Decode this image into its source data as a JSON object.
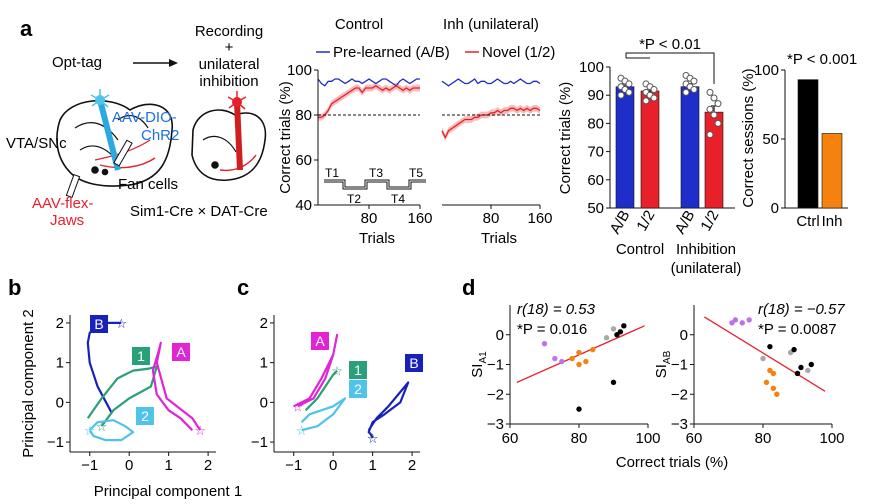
{
  "panel_letters": {
    "a": "a",
    "b": "b",
    "c": "c",
    "d": "d"
  },
  "schematic": {
    "opt_tag": "Opt-tag",
    "recording_line1": "Recording",
    "recording_plus": "+",
    "recording_line2": "unilateral",
    "recording_line3": "inhibition",
    "aav_dio_1": "AAV-DIO-",
    "aav_dio_2": "ChR2",
    "vta": "VTA/SNc",
    "fan_cells": "Fan cells",
    "aav_flex_1": "AAV-flex-",
    "aav_flex_2": "Jaws",
    "cre_line": "Sim1-Cre × DAT-Cre"
  },
  "colors": {
    "blue": "#1f2ec8",
    "red": "#e8202a",
    "red_fill": "#f4a0a0",
    "magenta": "#e024d6",
    "green": "#2aa07a",
    "light_blue": "#4fc3e8",
    "dark_blue": "#1822b8",
    "orange": "#f5820f",
    "black": "#000000",
    "gray": "#a8a8a8",
    "violet": "#c070e8"
  },
  "chart_data": [
    {
      "id": "learning-curves",
      "type": "line",
      "titles": [
        "Control",
        "Inh (unilateral)"
      ],
      "ylabel": "Correct trials (%)",
      "xlabel": "Trials",
      "xticks": [
        "80",
        "160"
      ],
      "xlim": [
        0,
        160
      ],
      "ylim": [
        40,
        100
      ],
      "yticks": [
        "40",
        "60",
        "80",
        "100"
      ],
      "chance_level": 80,
      "legend": [
        "Pre-learned (A/B)",
        "Novel (1/2)"
      ],
      "blocks": [
        "T1",
        "T2",
        "T3",
        "T4",
        "T5"
      ],
      "control_pre": [
        96,
        94,
        93,
        95,
        95,
        96,
        96,
        95,
        94,
        95,
        96,
        95,
        95,
        94,
        95,
        96,
        95,
        94,
        95,
        96,
        96,
        95,
        94,
        93,
        95,
        96,
        95,
        94,
        95,
        96,
        96
      ],
      "control_novel": [
        79,
        79,
        80,
        82,
        85,
        86,
        87,
        88,
        89,
        90,
        91,
        92,
        92,
        90,
        92,
        92,
        92,
        93,
        92,
        91,
        92,
        91,
        92,
        93,
        92,
        91,
        92,
        91,
        92,
        92,
        92
      ],
      "inh_pre": [
        95,
        94,
        93,
        94,
        95,
        96,
        95,
        94,
        94,
        95,
        96,
        94,
        95,
        95,
        94,
        94,
        95,
        96,
        95,
        94,
        94,
        95,
        94,
        95,
        96,
        95,
        94,
        94,
        95,
        95,
        94
      ],
      "inh_novel": [
        73,
        70,
        73,
        74,
        75,
        76,
        77,
        78,
        78,
        78,
        79,
        79,
        80,
        80,
        80,
        81,
        81,
        82,
        81,
        82,
        82,
        83,
        83,
        82,
        83,
        82,
        83,
        82,
        83,
        83,
        82
      ]
    },
    {
      "id": "bar-correct-trials",
      "type": "bar",
      "ylabel": "Correct trials (%)",
      "ylim": [
        50,
        100
      ],
      "yticks": [
        "50",
        "60",
        "70",
        "80",
        "90",
        "100"
      ],
      "categories": [
        "A/B",
        "1/2",
        "A/B",
        "1/2"
      ],
      "groups": [
        "Control",
        "Inhibition",
        "(unilateral)"
      ],
      "values": [
        93,
        91.5,
        93,
        84
      ],
      "errors": [
        1.2,
        1.3,
        1.1,
        2.2
      ],
      "colors": [
        "#1f2ec8",
        "#e8202a",
        "#1f2ec8",
        "#e8202a"
      ],
      "points": [
        [
          96,
          95,
          94,
          93,
          92,
          91,
          90
        ],
        [
          94,
          93,
          92,
          91,
          90,
          89,
          88
        ],
        [
          97,
          96,
          95,
          94,
          93,
          92,
          91
        ],
        [
          91,
          89,
          87,
          85,
          83,
          80,
          76
        ]
      ],
      "annotation": "*P < 0.01"
    },
    {
      "id": "bar-sessions",
      "type": "bar",
      "ylabel": "Correct sessions (%)",
      "ylim": [
        0,
        100
      ],
      "yticks": [
        "0",
        "50",
        "100"
      ],
      "categories": [
        "Ctrl",
        "Inh"
      ],
      "values": [
        93,
        54
      ],
      "colors": [
        "#000000",
        "#f5820f"
      ],
      "annotation": "*P < 0.001"
    },
    {
      "id": "pca-b",
      "type": "line",
      "xlabel": "Principal component 1",
      "ylabel": "Principal component 2",
      "xlim": [
        -1.5,
        2.2
      ],
      "ylim": [
        -1.25,
        2.2
      ],
      "xticks": [
        "−1",
        "0",
        "1",
        "2"
      ],
      "yticks": [
        "−1",
        "0",
        "1",
        "2"
      ],
      "series": [
        {
          "name": "B",
          "color": "#1822b8",
          "x": [
            -0.45,
            -0.8,
            -1.0,
            -1.05,
            -1.0,
            -0.8,
            -0.6,
            -0.2
          ],
          "y": [
            -0.25,
            0.4,
            1.0,
            1.5,
            1.75,
            1.95,
            2.0,
            2.0
          ]
        },
        {
          "name": "1",
          "color": "#2aa07a",
          "x": [
            -1.05,
            -0.7,
            -0.3,
            0.1,
            0.5,
            0.7,
            0.55,
            0.0,
            -0.4,
            -0.7
          ],
          "y": [
            -0.4,
            0.1,
            0.6,
            0.8,
            0.85,
            0.9,
            0.4,
            0.1,
            -0.2,
            -0.6
          ]
        },
        {
          "name": "A",
          "color": "#e024d6",
          "x": [
            1.6,
            1.3,
            1.0,
            0.7,
            0.6,
            0.75,
            0.8,
            0.7,
            0.95,
            1.6,
            1.8
          ],
          "y": [
            -0.7,
            -0.4,
            -0.2,
            0.2,
            0.8,
            1.3,
            1.5,
            1.0,
            0.1,
            -0.4,
            -0.7
          ]
        },
        {
          "name": "2",
          "color": "#4fc3e8",
          "x": [
            -1.0,
            -0.8,
            -0.4,
            -0.1,
            0.1,
            -0.2,
            -0.6,
            -0.9,
            -1.0
          ],
          "y": [
            -0.7,
            -0.5,
            -0.45,
            -0.6,
            -0.75,
            -0.95,
            -0.95,
            -0.85,
            -0.7
          ]
        }
      ]
    },
    {
      "id": "pca-c",
      "type": "line",
      "xlim": [
        -1.5,
        2.2
      ],
      "ylim": [
        -1.25,
        2.2
      ],
      "xticks": [
        "−1",
        "0",
        "1",
        "2"
      ],
      "yticks": [
        "−1",
        "0",
        "1",
        "2"
      ],
      "series": [
        {
          "name": "A",
          "color": "#e024d6",
          "x": [
            -1.0,
            -0.6,
            -0.3,
            0.0,
            0.1,
            0.0,
            -0.2,
            -0.5,
            -0.9
          ],
          "y": [
            -0.1,
            0.1,
            0.6,
            1.2,
            1.7,
            1.2,
            0.6,
            0.1,
            -0.1
          ]
        },
        {
          "name": "1",
          "color": "#2aa07a",
          "x": [
            -0.7,
            -0.4,
            -0.2,
            0.0,
            0.1
          ],
          "y": [
            -0.2,
            0.1,
            0.4,
            0.7,
            0.8
          ]
        },
        {
          "name": "B",
          "color": "#1822b8",
          "x": [
            0.9,
            1.1,
            1.4,
            1.9,
            1.7,
            1.3,
            1.0,
            0.9,
            0.95,
            1.0
          ],
          "y": [
            -0.7,
            -0.4,
            -0.1,
            0.5,
            0.0,
            -0.3,
            -0.5,
            -0.75,
            -0.8,
            -0.9
          ]
        },
        {
          "name": "2",
          "color": "#4fc3e8",
          "x": [
            -0.8,
            -0.6,
            -0.3,
            0.0,
            0.3,
            0.0,
            -0.4,
            -0.8
          ],
          "y": [
            -0.5,
            -0.3,
            -0.2,
            -0.1,
            0.1,
            -0.3,
            -0.6,
            -0.7
          ]
        }
      ]
    },
    {
      "id": "scatter-si-a1",
      "type": "scatter",
      "xlim": [
        60,
        100
      ],
      "ylim": [
        -3,
        1
      ],
      "xticks": [
        "60",
        "80",
        "100"
      ],
      "yticks": [
        "−3",
        "−2",
        "−1",
        "0"
      ],
      "ylabel": "SI",
      "ylabel_sub": "A1",
      "stat_r": "r(18) = 0.53",
      "stat_p": "*P = 0.016",
      "fit": [
        [
          62,
          -1.6
        ],
        [
          99,
          0.3
        ]
      ],
      "points": [
        {
          "x": 70,
          "y": -0.3,
          "c": "violet"
        },
        {
          "x": 73,
          "y": -0.8,
          "c": "violet"
        },
        {
          "x": 75,
          "y": -0.9,
          "c": "violet"
        },
        {
          "x": 78,
          "y": -0.8,
          "c": "orange"
        },
        {
          "x": 80,
          "y": -0.6,
          "c": "orange"
        },
        {
          "x": 82,
          "y": -0.9,
          "c": "orange"
        },
        {
          "x": 84,
          "y": -0.5,
          "c": "orange"
        },
        {
          "x": 80,
          "y": -1.0,
          "c": "orange"
        },
        {
          "x": 88,
          "y": -0.1,
          "c": "gray"
        },
        {
          "x": 90,
          "y": 0.2,
          "c": "gray"
        },
        {
          "x": 91,
          "y": 0.0,
          "c": "black"
        },
        {
          "x": 92,
          "y": 0.1,
          "c": "black"
        },
        {
          "x": 93,
          "y": 0.3,
          "c": "black"
        },
        {
          "x": 90,
          "y": -1.6,
          "c": "black"
        },
        {
          "x": 80,
          "y": -2.5,
          "c": "black"
        }
      ]
    },
    {
      "id": "scatter-si-ab",
      "type": "scatter",
      "xlim": [
        60,
        100
      ],
      "ylim": [
        -3,
        1
      ],
      "xticks": [
        "60",
        "80",
        "100"
      ],
      "yticks": [
        "−3",
        "−2",
        "−1",
        "0"
      ],
      "ylabel": "SI",
      "ylabel_sub": "AB",
      "stat_r": "r(18) = −0.57",
      "stat_p": "*P = 0.0087",
      "fit": [
        [
          63,
          0.6
        ],
        [
          98,
          -1.9
        ]
      ],
      "points": [
        {
          "x": 71,
          "y": 0.4,
          "c": "violet"
        },
        {
          "x": 72,
          "y": 0.5,
          "c": "violet"
        },
        {
          "x": 74,
          "y": 0.4,
          "c": "violet"
        },
        {
          "x": 76,
          "y": 0.5,
          "c": "violet"
        },
        {
          "x": 80,
          "y": -0.8,
          "c": "gray"
        },
        {
          "x": 82,
          "y": -1.2,
          "c": "orange"
        },
        {
          "x": 81,
          "y": -1.6,
          "c": "orange"
        },
        {
          "x": 83,
          "y": -1.8,
          "c": "orange"
        },
        {
          "x": 84,
          "y": -2.0,
          "c": "orange"
        },
        {
          "x": 83,
          "y": -1.3,
          "c": "orange"
        },
        {
          "x": 82,
          "y": -0.4,
          "c": "black"
        },
        {
          "x": 88,
          "y": -0.6,
          "c": "gray"
        },
        {
          "x": 89,
          "y": -0.5,
          "c": "black"
        },
        {
          "x": 91,
          "y": -1.1,
          "c": "black"
        },
        {
          "x": 93,
          "y": -1.2,
          "c": "gray"
        },
        {
          "x": 94,
          "y": -1.0,
          "c": "black"
        },
        {
          "x": 90,
          "y": -1.3,
          "c": "black"
        }
      ]
    }
  ],
  "shared": {
    "scatter_xlabel": "Correct trials (%)"
  }
}
